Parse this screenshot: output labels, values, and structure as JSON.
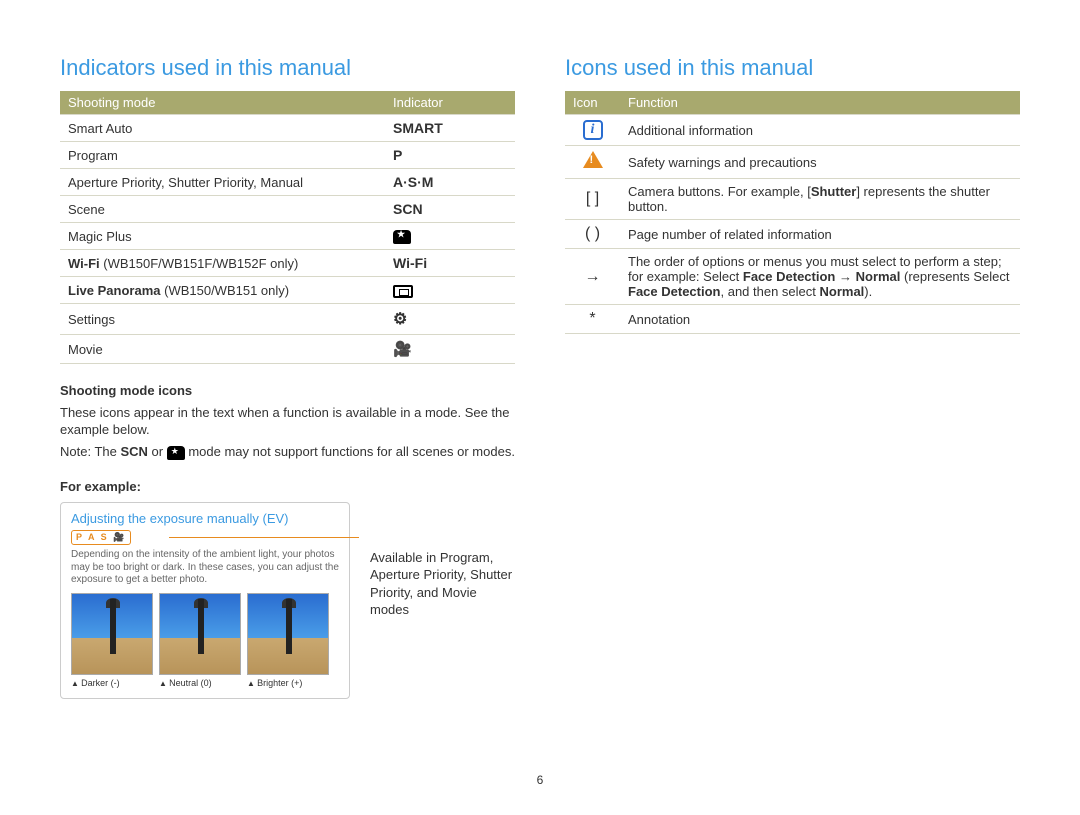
{
  "page_number": "6",
  "colors": {
    "heading": "#3b9ae1",
    "table_header_bg": "#a8a96e",
    "table_header_fg": "#ffffff",
    "border": "#d8d8c8",
    "accent_orange": "#e78b1f",
    "icon_blue": "#2a6dd0"
  },
  "left": {
    "title": "Indicators used in this manual",
    "table_headers": [
      "Shooting mode",
      "Indicator"
    ],
    "rows": [
      {
        "mode": "Smart Auto",
        "indicator": "SMART"
      },
      {
        "mode": "Program",
        "indicator": "P"
      },
      {
        "mode": "Aperture Priority, Shutter Priority, Manual",
        "indicator": "A·S·M"
      },
      {
        "mode": "Scene",
        "indicator": "SCN"
      },
      {
        "mode": "Magic Plus",
        "indicator": "magic"
      },
      {
        "mode_html": "<b>Wi-Fi</b> (WB150F/WB151F/WB152F only)",
        "indicator": "Wi-Fi"
      },
      {
        "mode_html": "<b>Live Panorama</b> (WB150/WB151 only)",
        "indicator": "pano"
      },
      {
        "mode": "Settings",
        "indicator": "settings"
      },
      {
        "mode": "Movie",
        "indicator": "movie"
      }
    ],
    "sub_heading": "Shooting mode icons",
    "sub_text": "These icons appear in the text when a function is available in a mode. See the example below.",
    "note_prefix": "Note: The ",
    "note_mid": " or ",
    "note_suffix": " mode may not support functions for all scenes or modes.",
    "note_icon1": "SCN",
    "for_example": "For example:",
    "example": {
      "title": "Adjusting the exposure manually (EV)",
      "badge": "P A S 🎥",
      "desc": "Depending on the intensity of the ambient light, your photos may be too bright or dark. In these cases, you can adjust the exposure to get a better photo.",
      "thumbs": [
        "Darker (-)",
        "Neutral (0)",
        "Brighter (+)"
      ]
    },
    "callout": "Available in Program, Aperture Priority, Shutter Priority, and Movie modes"
  },
  "right": {
    "title": "Icons used in this manual",
    "table_headers": [
      "Icon",
      "Function"
    ],
    "rows": [
      {
        "icon": "info",
        "text": "Additional information"
      },
      {
        "icon": "warn",
        "text": "Safety warnings and precautions"
      },
      {
        "icon": "[  ]",
        "html": "Camera buttons. For example, [<b>Shutter</b>] represents the shutter button."
      },
      {
        "icon": "(  )",
        "text": "Page number of related information"
      },
      {
        "icon": "→",
        "html": "The order of options or menus you must select to perform a step; for example: Select <b>Face Detection</b> → <b>Normal</b> (represents Select <b>Face Detection</b>, and then select <b>Normal</b>)."
      },
      {
        "icon": "*",
        "text": "Annotation"
      }
    ]
  }
}
